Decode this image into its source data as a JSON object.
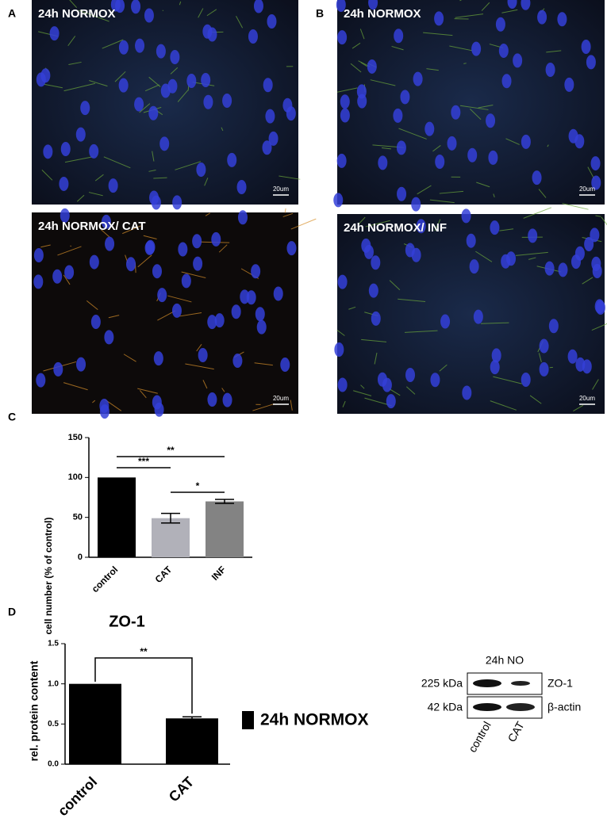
{
  "panel_labels": [
    "A",
    "B",
    "C",
    "D"
  ],
  "images": [
    {
      "title": "24h NORMOX",
      "scale_bar": "20um"
    },
    {
      "title": "24h NORMOX",
      "scale_bar": "20um"
    },
    {
      "title": "24h NORMOX/ CAT",
      "scale_bar": "20um"
    },
    {
      "title": "24h NORMOX/ INF",
      "scale_bar": "20um"
    }
  ],
  "chart_data": [
    {
      "type": "bar",
      "ylabel": "cell number (% of control)",
      "categories": [
        "control",
        "CAT",
        "INF"
      ],
      "values": [
        100,
        49,
        70
      ],
      "errors": [
        0,
        6,
        2.5
      ],
      "colors": [
        "#000000",
        "#b1b1b9",
        "#838383"
      ],
      "ylim": [
        0,
        150
      ],
      "yticks": [
        0,
        50,
        100,
        150
      ],
      "significance": [
        {
          "label": "**",
          "from": "control",
          "to": "INF"
        },
        {
          "label": "***",
          "from": "control",
          "to": "CAT"
        },
        {
          "label": "*",
          "from": "CAT",
          "to": "INF"
        }
      ]
    },
    {
      "type": "bar",
      "title": "ZO-1",
      "ylabel": "rel. protein content",
      "categories": [
        "control",
        "CAT"
      ],
      "values": [
        1.0,
        0.57
      ],
      "errors": [
        0,
        0.02
      ],
      "colors": [
        "#000000",
        "#000000"
      ],
      "ylim": [
        0,
        1.5
      ],
      "yticks": [
        {
          "value": 0,
          "label": "0.0"
        },
        {
          "value": 0.5,
          "label": "0.5"
        },
        {
          "value": 1,
          "label": "1.0"
        },
        {
          "value": 1.5,
          "label": "1.5"
        }
      ],
      "legend": "24h NORMOX",
      "significance": [
        {
          "label": "**",
          "from": "control",
          "to": "CAT"
        }
      ]
    }
  ],
  "blot": {
    "title": "24h NO",
    "rows": [
      {
        "size": "225 kDa",
        "protein": "ZO-1"
      },
      {
        "size": "42 kDa",
        "protein": "β-actin"
      }
    ],
    "lanes": [
      "control",
      "CAT"
    ]
  }
}
